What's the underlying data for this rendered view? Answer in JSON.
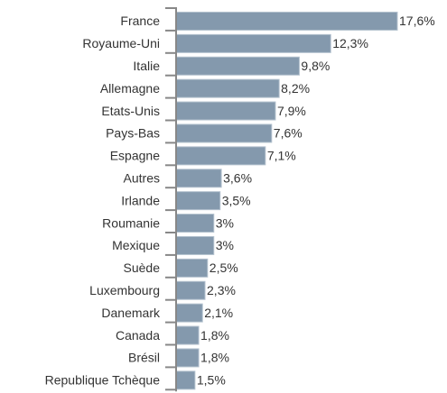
{
  "chart_data": {
    "type": "bar",
    "orientation": "horizontal",
    "categories": [
      "France",
      "Royaume-Uni",
      "Italie",
      "Allemagne",
      "Etats-Unis",
      "Pays-Bas",
      "Espagne",
      "Autres",
      "Irlande",
      "Roumanie",
      "Mexique",
      "Suède",
      "Luxembourg",
      "Danemark",
      "Canada",
      "Brésil",
      "Republique Tchèque"
    ],
    "values": [
      17.6,
      12.3,
      9.8,
      8.2,
      7.9,
      7.6,
      7.1,
      3.6,
      3.5,
      3,
      3,
      2.5,
      2.3,
      2.1,
      1.8,
      1.8,
      1.5
    ],
    "value_labels": [
      "17,6%",
      "12,3%",
      "9,8%",
      "8,2%",
      "7,9%",
      "7,6%",
      "7,1%",
      "3,6%",
      "3,5%",
      "3%",
      "3%",
      "2,5%",
      "2,3%",
      "2,1%",
      "1,8%",
      "1,8%",
      "1,5%"
    ],
    "color": "#8499ad"
  }
}
